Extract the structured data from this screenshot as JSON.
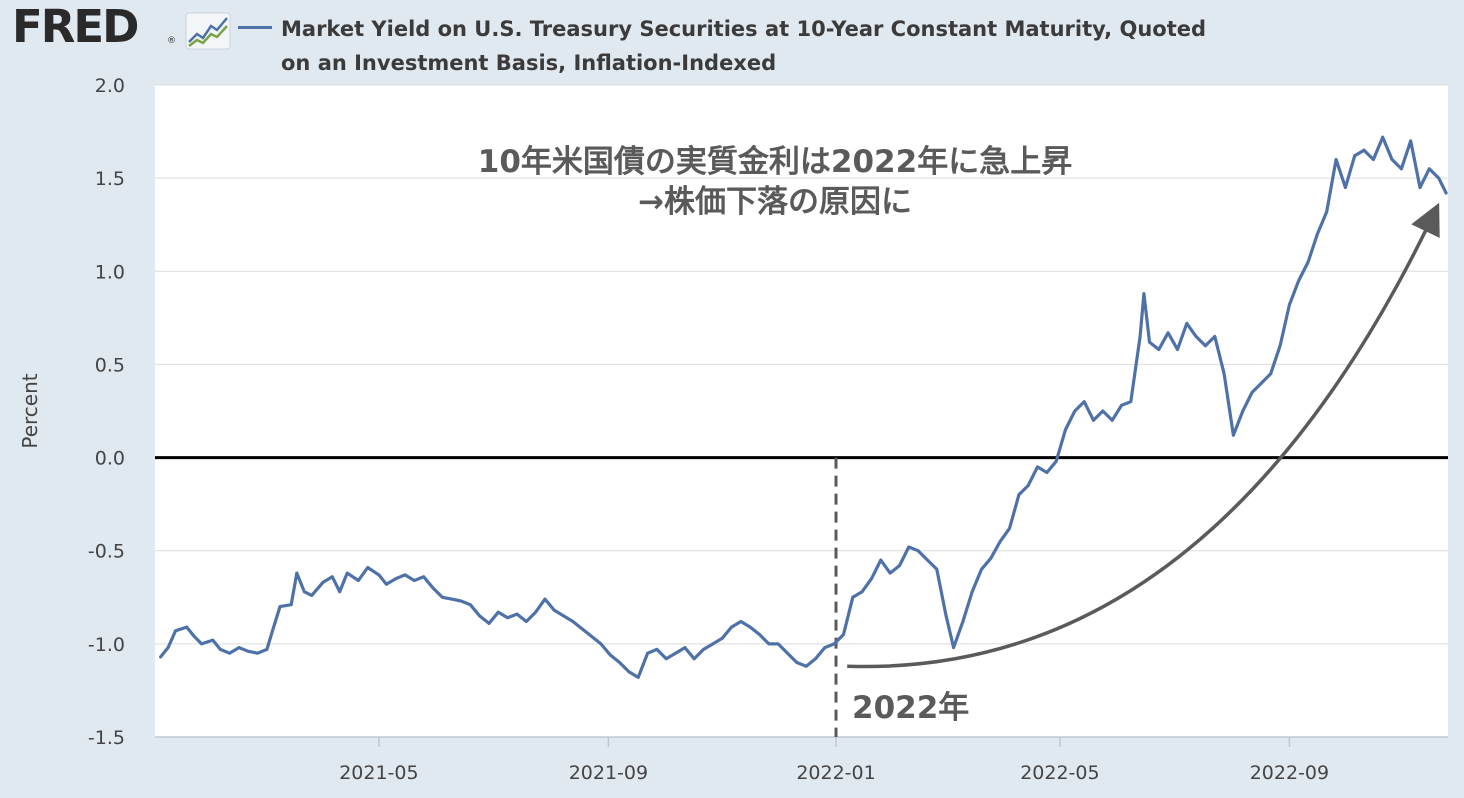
{
  "header": {
    "logo_text": "FRED",
    "logo_reg": "®"
  },
  "legend": {
    "series_color": "#4e72a8",
    "title": "Market Yield on U.S. Treasury Securities at 10-Year Constant Maturity, Quoted on an Investment Basis, Inflation-Indexed"
  },
  "chart_data": {
    "type": "line",
    "ylabel": "Percent",
    "xlabel": "",
    "ylim": [
      -1.5,
      2.0
    ],
    "yticks": [
      "2.0",
      "1.5",
      "1.0",
      "0.5",
      "0.0",
      "-0.5",
      "-1.0",
      "-1.5"
    ],
    "yticks_values": [
      2.0,
      1.5,
      1.0,
      0.5,
      0.0,
      -0.5,
      -1.0,
      -1.5
    ],
    "xlim": [
      "2021-01-01",
      "2022-11-25"
    ],
    "xticks": [
      "2021-05",
      "2021-09",
      "2022-01",
      "2022-05",
      "2022-09"
    ],
    "xticks_dates": [
      "2021-05-01",
      "2021-09-01",
      "2022-01-01",
      "2022-05-01",
      "2022-09-01"
    ],
    "grid": "horizontal",
    "background": "#ffffff",
    "zero_line_color": "#000000",
    "series": [
      {
        "color": "#4e72a8",
        "points": [
          [
            "2021-01-04",
            -1.07
          ],
          [
            "2021-01-08",
            -1.02
          ],
          [
            "2021-01-12",
            -0.93
          ],
          [
            "2021-01-18",
            -0.91
          ],
          [
            "2021-01-22",
            -0.96
          ],
          [
            "2021-01-26",
            -1.0
          ],
          [
            "2021-02-01",
            -0.98
          ],
          [
            "2021-02-05",
            -1.03
          ],
          [
            "2021-02-10",
            -1.05
          ],
          [
            "2021-02-15",
            -1.02
          ],
          [
            "2021-02-20",
            -1.04
          ],
          [
            "2021-02-25",
            -1.05
          ],
          [
            "2021-03-02",
            -1.03
          ],
          [
            "2021-03-05",
            -0.93
          ],
          [
            "2021-03-09",
            -0.8
          ],
          [
            "2021-03-15",
            -0.79
          ],
          [
            "2021-03-18",
            -0.62
          ],
          [
            "2021-03-22",
            -0.72
          ],
          [
            "2021-03-26",
            -0.74
          ],
          [
            "2021-04-01",
            -0.67
          ],
          [
            "2021-04-06",
            -0.64
          ],
          [
            "2021-04-10",
            -0.72
          ],
          [
            "2021-04-14",
            -0.62
          ],
          [
            "2021-04-20",
            -0.66
          ],
          [
            "2021-04-25",
            -0.59
          ],
          [
            "2021-05-01",
            -0.63
          ],
          [
            "2021-05-05",
            -0.68
          ],
          [
            "2021-05-10",
            -0.65
          ],
          [
            "2021-05-15",
            -0.63
          ],
          [
            "2021-05-20",
            -0.66
          ],
          [
            "2021-05-25",
            -0.64
          ],
          [
            "2021-05-30",
            -0.7
          ],
          [
            "2021-06-04",
            -0.75
          ],
          [
            "2021-06-09",
            -0.76
          ],
          [
            "2021-06-14",
            -0.77
          ],
          [
            "2021-06-19",
            -0.79
          ],
          [
            "2021-06-24",
            -0.85
          ],
          [
            "2021-06-29",
            -0.89
          ],
          [
            "2021-07-04",
            -0.83
          ],
          [
            "2021-07-09",
            -0.86
          ],
          [
            "2021-07-14",
            -0.84
          ],
          [
            "2021-07-19",
            -0.88
          ],
          [
            "2021-07-24",
            -0.83
          ],
          [
            "2021-07-29",
            -0.76
          ],
          [
            "2021-08-03",
            -0.82
          ],
          [
            "2021-08-08",
            -0.85
          ],
          [
            "2021-08-13",
            -0.88
          ],
          [
            "2021-08-18",
            -0.92
          ],
          [
            "2021-08-23",
            -0.96
          ],
          [
            "2021-08-28",
            -1.0
          ],
          [
            "2021-09-02",
            -1.06
          ],
          [
            "2021-09-07",
            -1.1
          ],
          [
            "2021-09-12",
            -1.15
          ],
          [
            "2021-09-17",
            -1.18
          ],
          [
            "2021-09-22",
            -1.05
          ],
          [
            "2021-09-27",
            -1.03
          ],
          [
            "2021-10-02",
            -1.08
          ],
          [
            "2021-10-07",
            -1.05
          ],
          [
            "2021-10-12",
            -1.02
          ],
          [
            "2021-10-17",
            -1.08
          ],
          [
            "2021-10-22",
            -1.03
          ],
          [
            "2021-10-27",
            -1.0
          ],
          [
            "2021-11-01",
            -0.97
          ],
          [
            "2021-11-06",
            -0.91
          ],
          [
            "2021-11-11",
            -0.88
          ],
          [
            "2021-11-16",
            -0.91
          ],
          [
            "2021-11-21",
            -0.95
          ],
          [
            "2021-11-26",
            -1.0
          ],
          [
            "2021-12-01",
            -1.0
          ],
          [
            "2021-12-06",
            -1.05
          ],
          [
            "2021-12-11",
            -1.1
          ],
          [
            "2021-12-16",
            -1.12
          ],
          [
            "2021-12-21",
            -1.08
          ],
          [
            "2021-12-26",
            -1.02
          ],
          [
            "2021-12-31",
            -1.0
          ],
          [
            "2022-01-05",
            -0.95
          ],
          [
            "2022-01-10",
            -0.75
          ],
          [
            "2022-01-15",
            -0.72
          ],
          [
            "2022-01-20",
            -0.65
          ],
          [
            "2022-01-25",
            -0.55
          ],
          [
            "2022-01-30",
            -0.62
          ],
          [
            "2022-02-04",
            -0.58
          ],
          [
            "2022-02-09",
            -0.48
          ],
          [
            "2022-02-14",
            -0.5
          ],
          [
            "2022-02-19",
            -0.55
          ],
          [
            "2022-02-24",
            -0.6
          ],
          [
            "2022-03-01",
            -0.85
          ],
          [
            "2022-03-05",
            -1.02
          ],
          [
            "2022-03-10",
            -0.88
          ],
          [
            "2022-03-15",
            -0.72
          ],
          [
            "2022-03-20",
            -0.6
          ],
          [
            "2022-03-25",
            -0.54
          ],
          [
            "2022-03-30",
            -0.45
          ],
          [
            "2022-04-04",
            -0.38
          ],
          [
            "2022-04-09",
            -0.2
          ],
          [
            "2022-04-14",
            -0.15
          ],
          [
            "2022-04-19",
            -0.05
          ],
          [
            "2022-04-24",
            -0.08
          ],
          [
            "2022-04-29",
            -0.02
          ],
          [
            "2022-05-04",
            0.15
          ],
          [
            "2022-05-09",
            0.25
          ],
          [
            "2022-05-14",
            0.3
          ],
          [
            "2022-05-19",
            0.2
          ],
          [
            "2022-05-24",
            0.25
          ],
          [
            "2022-05-29",
            0.2
          ],
          [
            "2022-06-03",
            0.28
          ],
          [
            "2022-06-08",
            0.3
          ],
          [
            "2022-06-13",
            0.65
          ],
          [
            "2022-06-15",
            0.88
          ],
          [
            "2022-06-18",
            0.62
          ],
          [
            "2022-06-23",
            0.58
          ],
          [
            "2022-06-28",
            0.67
          ],
          [
            "2022-07-03",
            0.58
          ],
          [
            "2022-07-08",
            0.72
          ],
          [
            "2022-07-13",
            0.65
          ],
          [
            "2022-07-18",
            0.6
          ],
          [
            "2022-07-23",
            0.65
          ],
          [
            "2022-07-28",
            0.45
          ],
          [
            "2022-08-02",
            0.12
          ],
          [
            "2022-08-07",
            0.25
          ],
          [
            "2022-08-12",
            0.35
          ],
          [
            "2022-08-17",
            0.4
          ],
          [
            "2022-08-22",
            0.45
          ],
          [
            "2022-08-27",
            0.6
          ],
          [
            "2022-09-01",
            0.82
          ],
          [
            "2022-09-06",
            0.95
          ],
          [
            "2022-09-11",
            1.05
          ],
          [
            "2022-09-16",
            1.2
          ],
          [
            "2022-09-21",
            1.32
          ],
          [
            "2022-09-26",
            1.6
          ],
          [
            "2022-10-01",
            1.45
          ],
          [
            "2022-10-06",
            1.62
          ],
          [
            "2022-10-11",
            1.65
          ],
          [
            "2022-10-16",
            1.6
          ],
          [
            "2022-10-21",
            1.72
          ],
          [
            "2022-10-26",
            1.6
          ],
          [
            "2022-10-31",
            1.55
          ],
          [
            "2022-11-05",
            1.7
          ],
          [
            "2022-11-10",
            1.45
          ],
          [
            "2022-11-15",
            1.55
          ],
          [
            "2022-11-20",
            1.5
          ],
          [
            "2022-11-24",
            1.42
          ]
        ]
      }
    ],
    "annotations": {
      "headline_line1": "10年米国債の実質金利は2022年に急上昇",
      "headline_line2": "→株価下落の原因に",
      "marker_label": "2022年",
      "marker_date": "2022-01-01",
      "annotation_color": "#5a5a5a",
      "arrow": {
        "from": [
          "2022-01-07",
          -1.12
        ],
        "to": [
          "2022-11-17",
          1.3
        ]
      }
    }
  }
}
